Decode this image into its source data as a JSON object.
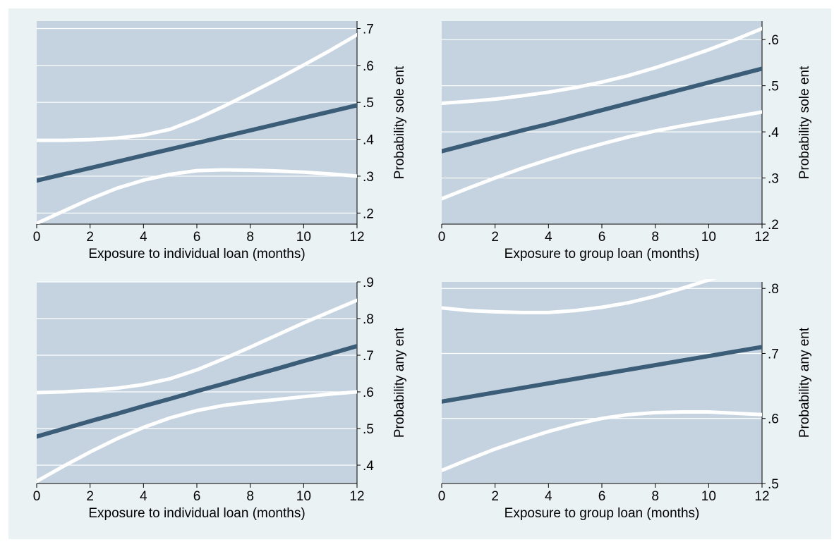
{
  "colors": {
    "outer_background": "#eaf2f3",
    "plot_background": "#c4d3df",
    "gridline": "#ffffff",
    "fitted_line": "#3b5d78",
    "ci_line": "#ffffff",
    "axis": "#000000"
  },
  "chart_data": [
    {
      "type": "line",
      "xlabel": "Exposure to individual loan (months)",
      "ylabel": "Probability sole ent",
      "x_ticks": [
        "0",
        "2",
        "4",
        "6",
        "8",
        "10",
        "12"
      ],
      "y_ticks": [
        ".2",
        ".3",
        ".4",
        ".5",
        ".6",
        ".7"
      ],
      "xlim": [
        0,
        12
      ],
      "ylim": [
        0.17,
        0.72
      ],
      "y_axis_side": "right",
      "grid": true,
      "x": [
        0,
        1,
        2,
        3,
        4,
        5,
        6,
        7,
        8,
        9,
        10,
        11,
        12
      ],
      "fitted": [
        0.288,
        0.305,
        0.322,
        0.339,
        0.356,
        0.373,
        0.39,
        0.407,
        0.424,
        0.441,
        0.458,
        0.475,
        0.492
      ],
      "ci_upper": [
        0.397,
        0.397,
        0.399,
        0.403,
        0.411,
        0.427,
        0.455,
        0.489,
        0.525,
        0.562,
        0.601,
        0.641,
        0.683
      ],
      "ci_lower": [
        0.172,
        0.205,
        0.238,
        0.267,
        0.289,
        0.305,
        0.315,
        0.317,
        0.316,
        0.314,
        0.311,
        0.306,
        0.3
      ]
    },
    {
      "type": "line",
      "xlabel": "Exposure to group loan (months)",
      "ylabel": "Probability sole ent",
      "x_ticks": [
        "0",
        "2",
        "4",
        "6",
        "8",
        "10",
        "12"
      ],
      "y_ticks": [
        ".2",
        ".3",
        ".4",
        ".5",
        ".6"
      ],
      "xlim": [
        0,
        12
      ],
      "ylim": [
        0.2,
        0.64
      ],
      "y_axis_side": "right",
      "grid": true,
      "x": [
        0,
        1,
        2,
        3,
        4,
        5,
        6,
        7,
        8,
        9,
        10,
        11,
        12
      ],
      "fitted": [
        0.358,
        0.373,
        0.388,
        0.403,
        0.417,
        0.432,
        0.447,
        0.462,
        0.477,
        0.492,
        0.507,
        0.522,
        0.537
      ],
      "ci_upper": [
        0.462,
        0.466,
        0.471,
        0.478,
        0.486,
        0.496,
        0.508,
        0.522,
        0.539,
        0.558,
        0.578,
        0.6,
        0.624
      ],
      "ci_lower": [
        0.255,
        0.278,
        0.3,
        0.321,
        0.34,
        0.358,
        0.374,
        0.389,
        0.402,
        0.413,
        0.423,
        0.433,
        0.443
      ]
    },
    {
      "type": "line",
      "xlabel": "Exposure to individual loan (months)",
      "ylabel": "Probability any ent",
      "x_ticks": [
        "0",
        "2",
        "4",
        "6",
        "8",
        "10",
        "12"
      ],
      "y_ticks": [
        ".4",
        ".5",
        ".6",
        ".7",
        ".8",
        ".9"
      ],
      "xlim": [
        0,
        12
      ],
      "ylim": [
        0.35,
        0.9
      ],
      "y_axis_side": "right",
      "grid": true,
      "x": [
        0,
        1,
        2,
        3,
        4,
        5,
        6,
        7,
        8,
        9,
        10,
        11,
        12
      ],
      "fitted": [
        0.478,
        0.499,
        0.52,
        0.54,
        0.561,
        0.581,
        0.602,
        0.622,
        0.643,
        0.663,
        0.684,
        0.704,
        0.725
      ],
      "ci_upper": [
        0.598,
        0.6,
        0.604,
        0.61,
        0.62,
        0.636,
        0.66,
        0.69,
        0.722,
        0.755,
        0.788,
        0.819,
        0.85
      ],
      "ci_lower": [
        0.356,
        0.397,
        0.436,
        0.472,
        0.503,
        0.529,
        0.549,
        0.563,
        0.572,
        0.579,
        0.587,
        0.594,
        0.6
      ]
    },
    {
      "type": "line",
      "xlabel": "Exposure to group loan (months)",
      "ylabel": "Probability any ent",
      "x_ticks": [
        "0",
        "2",
        "4",
        "6",
        "8",
        "10",
        "12"
      ],
      "y_ticks": [
        ".5",
        ".6",
        ".7",
        ".8"
      ],
      "xlim": [
        0,
        12
      ],
      "ylim": [
        0.5,
        0.81
      ],
      "y_axis_side": "right",
      "grid": true,
      "x": [
        0,
        1,
        2,
        3,
        4,
        5,
        6,
        7,
        8,
        9,
        10,
        11,
        12
      ],
      "fitted": [
        0.626,
        0.633,
        0.64,
        0.647,
        0.654,
        0.661,
        0.668,
        0.675,
        0.682,
        0.689,
        0.696,
        0.703,
        0.71
      ],
      "ci_upper": [
        0.77,
        0.766,
        0.764,
        0.763,
        0.763,
        0.766,
        0.771,
        0.778,
        0.788,
        0.8,
        0.813,
        0.826,
        0.84
      ],
      "ci_lower": [
        0.52,
        0.537,
        0.553,
        0.567,
        0.58,
        0.591,
        0.6,
        0.606,
        0.609,
        0.61,
        0.61,
        0.608,
        0.606
      ]
    }
  ]
}
